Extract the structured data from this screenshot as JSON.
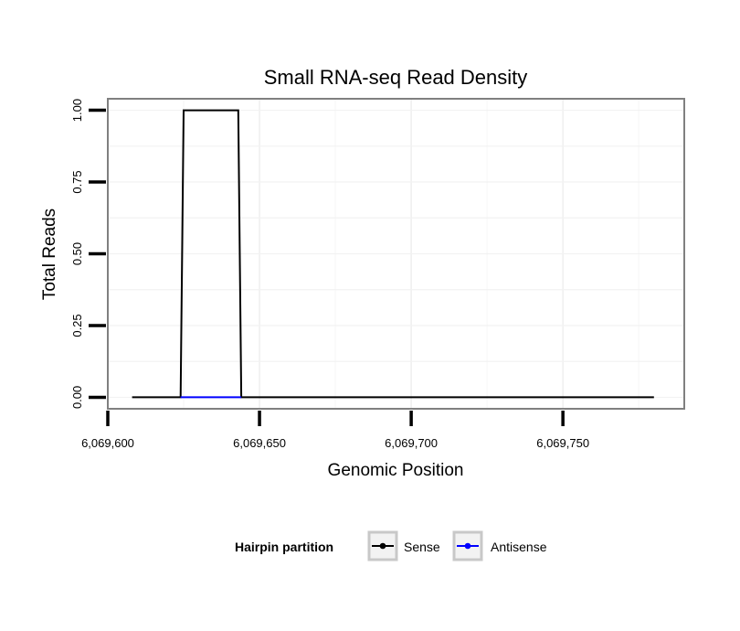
{
  "chart_data": {
    "type": "line",
    "title": "Small RNA-seq Read Density",
    "xlabel": "Genomic Position",
    "ylabel": "Total Reads",
    "xlim": [
      6069600,
      6069790
    ],
    "ylim": [
      -0.04,
      1.04
    ],
    "x_ticks": [
      6069600,
      6069650,
      6069700,
      6069750
    ],
    "x_tick_labels": [
      "6,069,600",
      "6,069,650",
      "6,069,700",
      "6,069,750"
    ],
    "y_ticks": [
      0,
      0.25,
      0.5,
      0.75,
      1.0
    ],
    "y_tick_labels": [
      "0.00",
      "0.25",
      "0.50",
      "0.75",
      "1.00"
    ],
    "grid": true,
    "legend": {
      "title": "Hairpin partition",
      "position": "bottom"
    },
    "series": [
      {
        "name": "Sense",
        "color": "#000000",
        "x": [
          6069608,
          6069624,
          6069625,
          6069643,
          6069644,
          6069780
        ],
        "y": [
          0,
          0,
          1,
          1,
          0,
          0
        ]
      },
      {
        "name": "Antisense",
        "color": "#0000ff",
        "x": [
          6069624,
          6069644
        ],
        "y": [
          0,
          0
        ]
      }
    ]
  }
}
